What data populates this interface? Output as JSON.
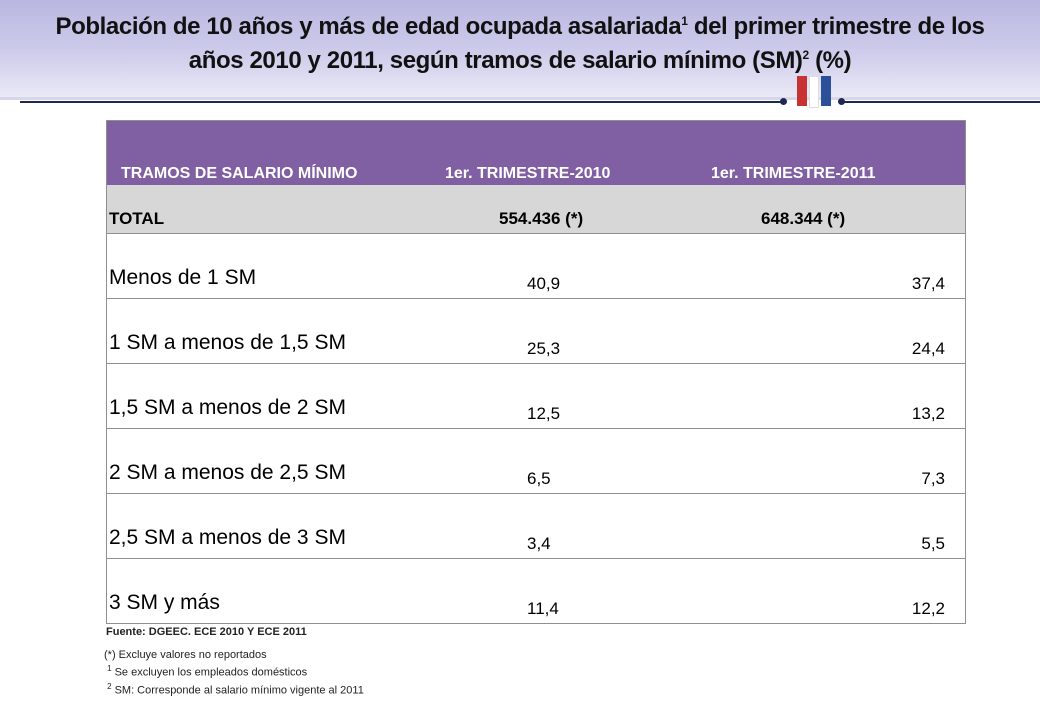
{
  "title": {
    "line1_a": "Población de 10 años y más de edad ocupada asalariada",
    "line1_sup": "1",
    "line1_b": " del primer trimestre de los",
    "line2_a": "años 2010 y 2011, según tramos de salario mínimo (SM)",
    "line2_sup": "2",
    "line2_b": " (%)"
  },
  "colors": {
    "header_bg": "#8060a2",
    "total_bg": "#d7d7d7",
    "flag_red": "#c83232",
    "flag_blue": "#2c4f9a"
  },
  "table": {
    "headers": [
      "TRAMOS DE SALARIO MÍNIMO",
      "1er. TRIMESTRE-2010",
      "1er. TRIMESTRE-2011"
    ],
    "total": {
      "label": "TOTAL",
      "v2010": "554.436 (*)",
      "v2011": "648.344  (*)"
    },
    "rows": [
      {
        "label": "Menos de 1 SM",
        "v2010": "40,9",
        "v2011": "37,4"
      },
      {
        "label": "1 SM a menos de 1,5 SM",
        "v2010": "25,3",
        "v2011": "24,4"
      },
      {
        "label": "1,5 SM a menos de 2 SM",
        "v2010": "12,5",
        "v2011": "13,2"
      },
      {
        "label": "2 SM a menos de 2,5 SM",
        "v2010": "6,5",
        "v2011": "7,3"
      },
      {
        "label": "2,5 SM a menos de 3 SM",
        "v2010": "3,4",
        "v2011": "5,5"
      },
      {
        "label": "3 SM y más",
        "v2010": "11,4",
        "v2011": "12,2"
      }
    ]
  },
  "source": "Fuente:  DGEEC. ECE 2010 Y ECE 2011",
  "notes": {
    "asterisk": "(*)  Excluye valores no  reportados",
    "n1_sup": "1",
    "n1_text": " Se excluyen los empleados domésticos",
    "n2_sup": "2",
    "n2_text": " SM: Corresponde al salario mínimo vigente al 2011"
  }
}
